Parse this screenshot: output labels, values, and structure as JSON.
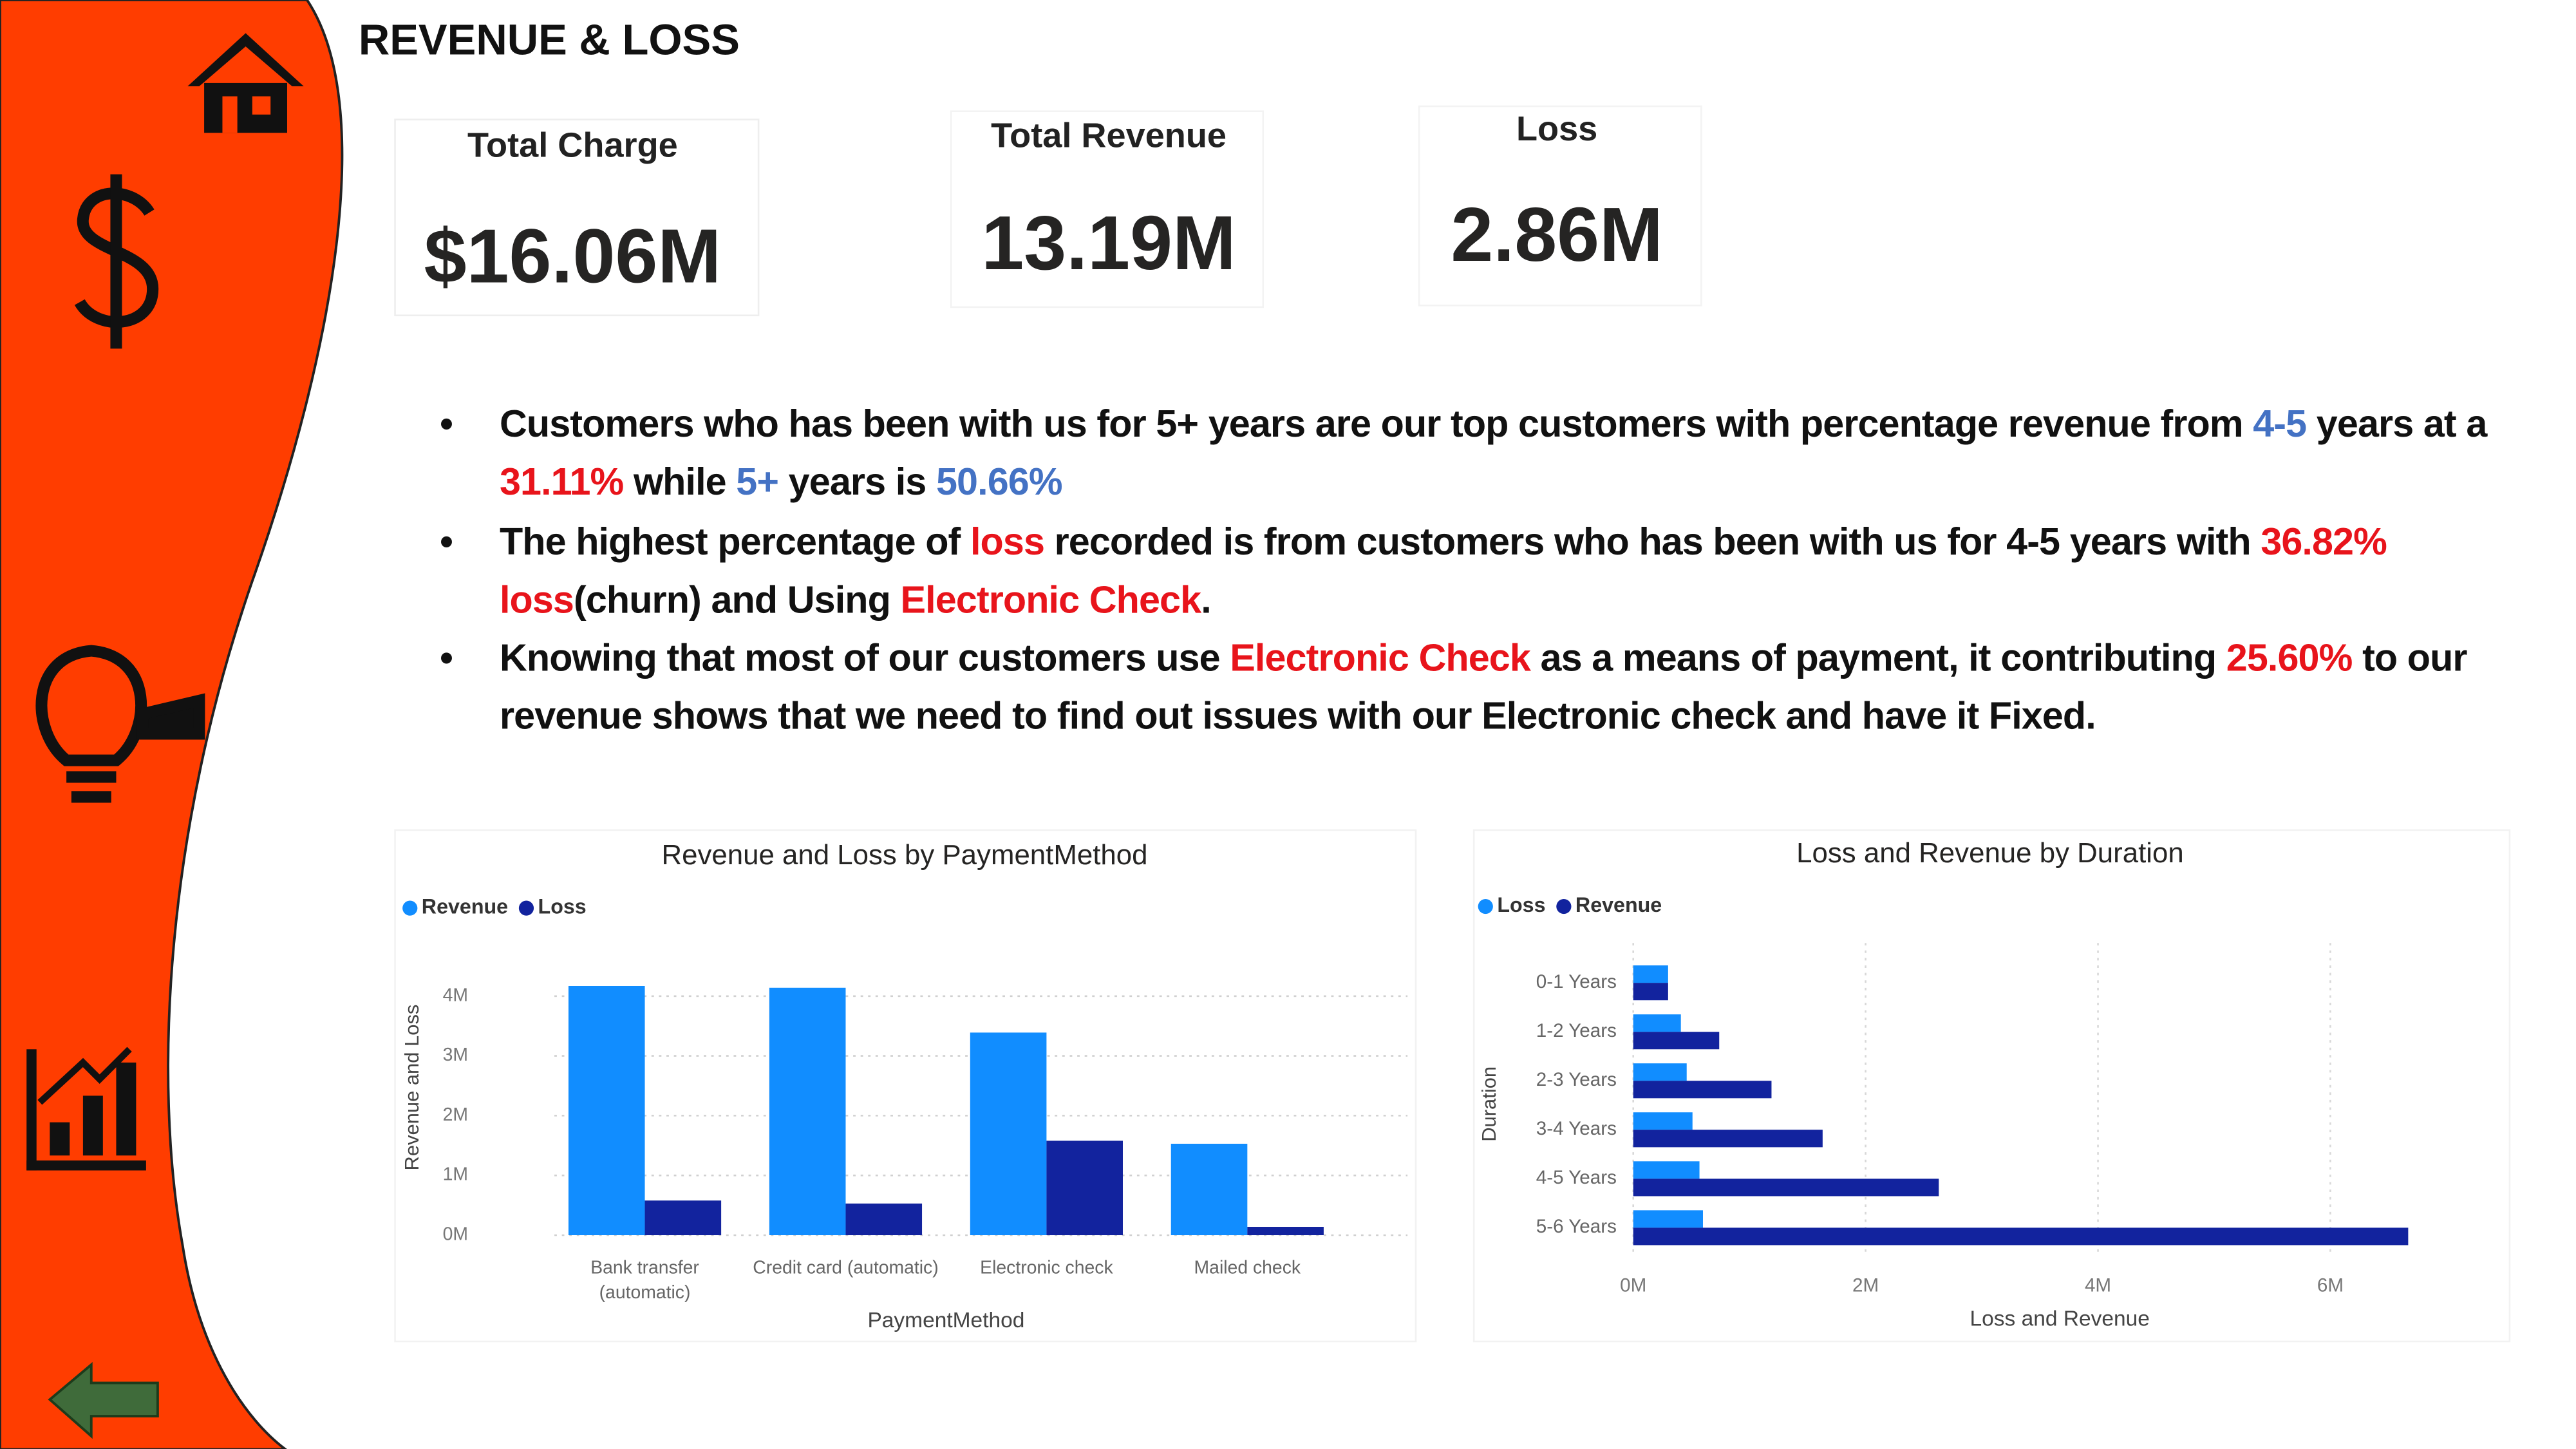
{
  "header": {
    "title": "REVENUE & LOSS"
  },
  "kpis": [
    {
      "label": "Total Charge",
      "value": "$16.06M"
    },
    {
      "label": "Total Revenue",
      "value": "13.19M"
    },
    {
      "label": "Loss",
      "value": "2.86M"
    }
  ],
  "bullets": [
    [
      {
        "text": "Customers who has been with us for 5+ years are our top customers with percentage revenue from "
      },
      {
        "text": "4-5",
        "color": "#4472c4"
      },
      {
        "text": " years at a "
      },
      {
        "text": "31.11%",
        "color": "#e8141b"
      },
      {
        "text": " while "
      },
      {
        "text": "5+",
        "color": "#4472c4"
      },
      {
        "text": " years is "
      },
      {
        "text": "50.66%",
        "color": "#4472c4"
      }
    ],
    [
      {
        "text": "The highest percentage of "
      },
      {
        "text": "loss",
        "color": "#e8141b"
      },
      {
        "text": " recorded is from customers who has been with us for 4-5 years with "
      },
      {
        "text": "36.82% loss",
        "color": "#e8141b"
      },
      {
        "text": "(churn) and Using "
      },
      {
        "text": "Electronic Check",
        "color": "#e8141b"
      },
      {
        "text": "."
      }
    ],
    [
      {
        "text": "Knowing that most of our customers use "
      },
      {
        "text": "Electronic Check",
        "color": "#e8141b"
      },
      {
        "text": " as a means of payment, it contributing "
      },
      {
        "text": "25.60%",
        "color": "#e8141b"
      },
      {
        "text": " to our revenue shows that we need to find out issues with our Electronic check and have it Fixed."
      }
    ]
  ],
  "chart_data": [
    {
      "type": "bar",
      "title": "Revenue and Loss by PaymentMethod",
      "x_label": "PaymentMethod",
      "y_label": "Revenue and Loss",
      "categories": [
        "Bank transfer (automatic)",
        "Credit card (automatic)",
        "Electronic check",
        "Mailed check"
      ],
      "series": [
        {
          "name": "Revenue",
          "color": "#118dff",
          "values": [
            4170000,
            4140000,
            3390000,
            1530000
          ]
        },
        {
          "name": "Loss",
          "color": "#12239e",
          "values": [
            580000,
            530000,
            1580000,
            140000
          ]
        }
      ],
      "ylim": [
        0,
        4400000
      ],
      "yticks": [
        {
          "value": 0,
          "label": "0M"
        },
        {
          "value": 1000000,
          "label": "1M"
        },
        {
          "value": 2000000,
          "label": "2M"
        },
        {
          "value": 3000000,
          "label": "3M"
        },
        {
          "value": 4000000,
          "label": "4M"
        }
      ],
      "grid": true,
      "legend": "top-left"
    },
    {
      "type": "barh",
      "title": "Loss and Revenue by Duration",
      "x_label": "Loss and Revenue",
      "y_label": "Duration",
      "categories": [
        "0-1 Years",
        "1-2 Years",
        "2-3 Years",
        "3-4 Years",
        "4-5 Years",
        "5-6 Years"
      ],
      "series": [
        {
          "name": "Loss",
          "color": "#118dff",
          "values": [
            300000,
            410000,
            460000,
            510000,
            570000,
            600000
          ]
        },
        {
          "name": "Revenue",
          "color": "#12239e",
          "values": [
            300000,
            740000,
            1190000,
            1630000,
            2630000,
            6670000
          ]
        }
      ],
      "xlim": [
        0,
        7000000
      ],
      "xticks": [
        {
          "value": 0,
          "label": "0M"
        },
        {
          "value": 2000000,
          "label": "2M"
        },
        {
          "value": 4000000,
          "label": "4M"
        },
        {
          "value": 6000000,
          "label": "6M"
        }
      ],
      "grid": true,
      "legend": "top-left"
    }
  ]
}
